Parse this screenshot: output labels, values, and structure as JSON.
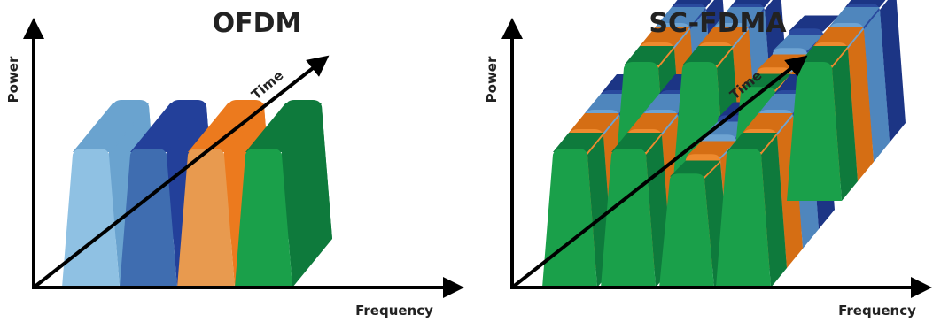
{
  "panels": [
    {
      "title": "OFDM",
      "y_axis": "Power",
      "z_axis": "Time",
      "x_axis": "Frequency"
    },
    {
      "title": "SC-FDMA",
      "y_axis": "Power",
      "z_axis": "Time",
      "x_axis": "Frequency"
    }
  ]
}
